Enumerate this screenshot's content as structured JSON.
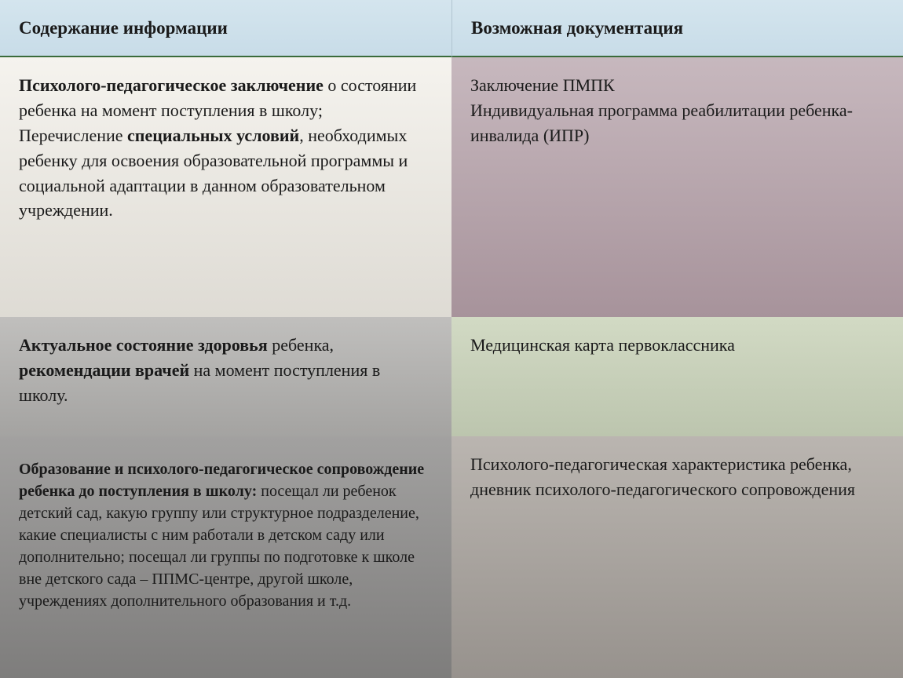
{
  "table": {
    "headers": {
      "left": "Содержание информации",
      "right": "Возможная документация"
    },
    "rows": [
      {
        "left": {
          "segments": [
            {
              "text": "Психолого-педагогическое заключение",
              "bold": true
            },
            {
              "text": " о состоянии ребенка  на момент поступления в школу;",
              "bold": false
            },
            {
              "text": "\n",
              "bold": false
            },
            {
              "text": "Перечисление ",
              "bold": false
            },
            {
              "text": "специальных условий",
              "bold": true
            },
            {
              "text": ", необходимых ребенку для освоения образовательной программы и социальной адаптации в данном образовательном учреждении.",
              "bold": false
            }
          ]
        },
        "right": {
          "segments": [
            {
              "text": "Заключение ПМПК",
              "bold": false
            },
            {
              "text": "\n",
              "bold": false
            },
            {
              "text": "Индивидуальная программа реабилитации ребенка-инвалида (ИПР)",
              "bold": false
            }
          ]
        }
      },
      {
        "left": {
          "segments": [
            {
              "text": "Актуальное состояние здоровья",
              "bold": true
            },
            {
              "text": " ребенка, ",
              "bold": false
            },
            {
              "text": "рекомендации врачей",
              "bold": true
            },
            {
              "text": " на момент поступления в школу.",
              "bold": false
            }
          ]
        },
        "right": {
          "segments": [
            {
              "text": "Медицинская карта первоклассника",
              "bold": false
            }
          ]
        }
      },
      {
        "left": {
          "segments": [
            {
              "text": "Образование и психолого-педагогическое сопровождение ребенка до поступления в школу:",
              "bold": true
            },
            {
              "text": " посещал ли ребенок детский сад, какую группу или структурное подразделение, какие специалисты с ним работали в детском саду или дополнительно; посещал ли группы по подготовке к школе вне детского сада – ППМС-центре,  другой школе, учреждениях дополнительного образования и т.д.",
              "bold": false
            }
          ]
        },
        "right": {
          "segments": [
            {
              "text": "Психолого-педагогическая характеристика ребенка, дневник психолого-педагогического сопровождения",
              "bold": false
            }
          ]
        }
      }
    ]
  },
  "styles": {
    "header_bg_gradient": [
      "#d4e5ee",
      "#c8dce8"
    ],
    "header_border_bottom": "#3a6b3a",
    "header_fontsize": 23,
    "cell_fontsize": 22,
    "r3c1_fontsize": 20,
    "text_color": "#1a1a1a",
    "row_bg": {
      "r1c1": [
        "#f5f3ee",
        "#dedbd4"
      ],
      "r1c2": [
        "#c7b8be",
        "#a7939b"
      ],
      "r2c1": [
        "#c0bfbd",
        "#a4a3a1"
      ],
      "r2c2": [
        "#d2dac4",
        "#bcc5ae"
      ],
      "r3c1": [
        "#a2a1a0",
        "#7e7d7c"
      ],
      "r3c2": [
        "#bab5b0",
        "#97928d"
      ]
    }
  }
}
